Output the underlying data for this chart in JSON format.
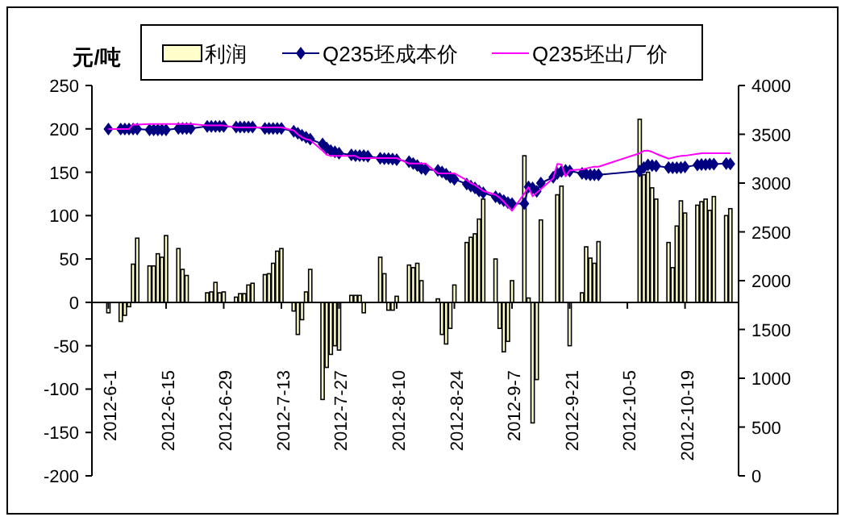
{
  "chart_data": {
    "type": "bar",
    "ylabel": "元/吨",
    "legend": "top",
    "x": [
      "2012-06-01",
      "2012-06-04",
      "2012-06-05",
      "2012-06-06",
      "2012-06-07",
      "2012-06-08",
      "2012-06-11",
      "2012-06-12",
      "2012-06-13",
      "2012-06-14",
      "2012-06-15",
      "2012-06-18",
      "2012-06-19",
      "2012-06-20",
      "2012-06-21",
      "2012-06-25",
      "2012-06-26",
      "2012-06-27",
      "2012-06-28",
      "2012-06-29",
      "2012-07-02",
      "2012-07-03",
      "2012-07-04",
      "2012-07-05",
      "2012-07-06",
      "2012-07-09",
      "2012-07-10",
      "2012-07-11",
      "2012-07-12",
      "2012-07-13",
      "2012-07-16",
      "2012-07-17",
      "2012-07-18",
      "2012-07-19",
      "2012-07-20",
      "2012-07-23",
      "2012-07-24",
      "2012-07-25",
      "2012-07-26",
      "2012-07-27",
      "2012-07-30",
      "2012-07-31",
      "2012-08-01",
      "2012-08-02",
      "2012-08-03",
      "2012-08-06",
      "2012-08-07",
      "2012-08-08",
      "2012-08-09",
      "2012-08-10",
      "2012-08-13",
      "2012-08-14",
      "2012-08-15",
      "2012-08-16",
      "2012-08-17",
      "2012-08-20",
      "2012-08-21",
      "2012-08-22",
      "2012-08-23",
      "2012-08-24",
      "2012-08-27",
      "2012-08-28",
      "2012-08-29",
      "2012-08-30",
      "2012-08-31",
      "2012-09-03",
      "2012-09-04",
      "2012-09-05",
      "2012-09-06",
      "2012-09-07",
      "2012-09-10",
      "2012-09-11",
      "2012-09-12",
      "2012-09-13",
      "2012-09-14",
      "2012-09-17",
      "2012-09-18",
      "2012-09-19",
      "2012-09-20",
      "2012-09-21",
      "2012-09-24",
      "2012-09-25",
      "2012-09-26",
      "2012-09-27",
      "2012-09-28",
      "2012-10-08",
      "2012-10-09",
      "2012-10-10",
      "2012-10-11",
      "2012-10-12",
      "2012-10-15",
      "2012-10-16",
      "2012-10-17",
      "2012-10-18",
      "2012-10-19",
      "2012-10-22",
      "2012-10-23",
      "2012-10-24",
      "2012-10-25",
      "2012-10-26",
      "2012-10-29",
      "2012-10-30"
    ],
    "xlim": [
      "2012-05-28",
      "2012-11-01"
    ],
    "xticks": [
      {
        "value": "2012-06-01",
        "label": "2012-6-1"
      },
      {
        "value": "2012-06-15",
        "label": "2012-6-15"
      },
      {
        "value": "2012-06-29",
        "label": "2012-6-29"
      },
      {
        "value": "2012-07-13",
        "label": "2012-7-13"
      },
      {
        "value": "2012-07-27",
        "label": "2012-7-27"
      },
      {
        "value": "2012-08-10",
        "label": "2012-8-10"
      },
      {
        "value": "2012-08-24",
        "label": "2012-8-24"
      },
      {
        "value": "2012-09-07",
        "label": "2012-9-7"
      },
      {
        "value": "2012-09-21",
        "label": "2012-9-21"
      },
      {
        "value": "2012-10-05",
        "label": "2012-10-5"
      },
      {
        "value": "2012-10-19",
        "label": "2012-10-19"
      }
    ],
    "ylim": [
      -200,
      250
    ],
    "yticks": [
      -200,
      -150,
      -100,
      -50,
      0,
      50,
      100,
      150,
      200,
      250
    ],
    "y2lim": [
      0,
      4000
    ],
    "y2ticks": [
      0,
      500,
      1000,
      1500,
      2000,
      2500,
      3000,
      3500,
      4000
    ],
    "series": [
      {
        "name": "利润",
        "color": "#ffffcc",
        "values": [
          -12,
          -22,
          -15,
          -5,
          44,
          74,
          42,
          42,
          56,
          52,
          77,
          62,
          38,
          31,
          null,
          11,
          12,
          23,
          11,
          12,
          6,
          10,
          10,
          20,
          22,
          32,
          33,
          45,
          59,
          62,
          -10,
          -37,
          -20,
          12,
          38,
          -112,
          -75,
          -60,
          -50,
          -55,
          8,
          8,
          8,
          -12,
          null,
          52,
          33,
          -9,
          -9,
          7,
          43,
          40,
          45,
          25,
          null,
          4,
          -37,
          -48,
          -30,
          20,
          69,
          75,
          79,
          96,
          119,
          50,
          -30,
          -57,
          -45,
          25,
          169,
          5,
          -139,
          -89,
          95,
          null,
          124,
          134,
          null,
          -50,
          11,
          64,
          51,
          45,
          70,
          211,
          147,
          150,
          132,
          119,
          69,
          40,
          88,
          117,
          103,
          112,
          116,
          119,
          106,
          122,
          100,
          108
        ]
      },
      {
        "name": "Q235坯成本价",
        "type": "line",
        "axis": "y2",
        "color": "#000080",
        "marker": "diamond",
        "values": [
          3553,
          3553,
          3553,
          3553,
          3553,
          3553,
          3545,
          3545,
          3545,
          3545,
          3545,
          3560,
          3560,
          3560,
          3560,
          3581,
          3581,
          3581,
          3581,
          3581,
          3575,
          3575,
          3575,
          3575,
          3575,
          3560,
          3560,
          3560,
          3560,
          3560,
          3530,
          3510,
          3490,
          3470,
          3450,
          3400,
          3360,
          3333,
          3320,
          3306,
          3290,
          3280,
          3280,
          3280,
          3275,
          3255,
          3250,
          3250,
          3245,
          3240,
          3220,
          3200,
          3180,
          3150,
          3140,
          3130,
          3113,
          3090,
          3060,
          3040,
          2990,
          2970,
          2950,
          2920,
          2900,
          2860,
          2840,
          2820,
          2800,
          2790,
          2790,
          2960,
          2950,
          2915,
          3000,
          3060,
          3100,
          3120,
          3130,
          3124,
          3100,
          3090,
          3085,
          3085,
          3085,
          3124,
          3160,
          3185,
          3180,
          3175,
          3160,
          3157,
          3157,
          3160,
          3165,
          3185,
          3190,
          3190,
          3195,
          3195,
          3200,
          3196
        ]
      },
      {
        "name": "Q235坯出厂价",
        "type": "line",
        "axis": "y2",
        "color": "#ff00ff",
        "marker": "none",
        "values": [
          3553,
          3553,
          3553,
          3553,
          3600,
          3600,
          3605,
          3605,
          3605,
          3605,
          3605,
          3605,
          3605,
          3605,
          3605,
          3590,
          3590,
          3590,
          3590,
          3590,
          3570,
          3570,
          3570,
          3570,
          3570,
          3570,
          3570,
          3570,
          3570,
          3570,
          3540,
          3500,
          3470,
          3450,
          3440,
          3333,
          3290,
          3278,
          3278,
          3278,
          3278,
          3278,
          3256,
          3256,
          3256,
          3256,
          3256,
          3256,
          3256,
          3256,
          3200,
          3200,
          3200,
          3200,
          3200,
          3100,
          3100,
          3100,
          3100,
          3100,
          3030,
          3000,
          2980,
          2950,
          2920,
          2880,
          2850,
          2810,
          2760,
          2716,
          2893,
          2960,
          2865,
          2900,
          2937,
          3050,
          3196,
          3190,
          3069,
          3130,
          3140,
          3150,
          3160,
          3168,
          3168,
          3306,
          3330,
          3333,
          3320,
          3300,
          3250,
          3260,
          3270,
          3278,
          3280,
          3300,
          3306,
          3306,
          3306,
          3306,
          3306,
          3306
        ]
      }
    ]
  }
}
